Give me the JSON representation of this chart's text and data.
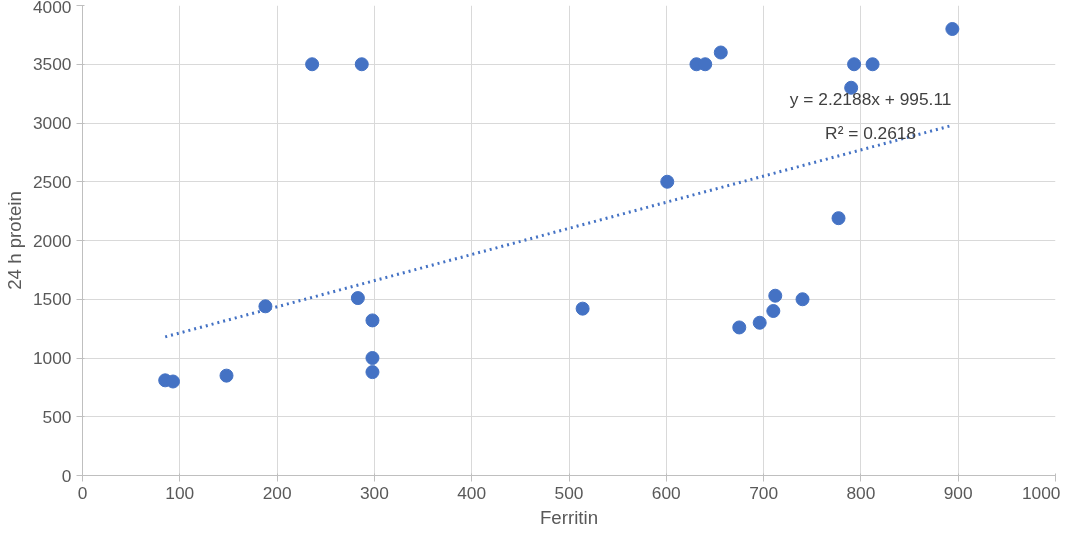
{
  "chart_data": {
    "type": "scatter",
    "xlabel": "Ferritin",
    "ylabel": "24 h protein",
    "xlim": [
      0,
      1000
    ],
    "xticks": [
      0,
      100,
      200,
      300,
      400,
      500,
      600,
      700,
      800,
      900,
      1000
    ],
    "ylim": [
      0,
      4000
    ],
    "yticks": [
      0,
      500,
      1000,
      1500,
      2000,
      2500,
      3000,
      3500,
      4000
    ],
    "grid": true,
    "series": [
      {
        "color": "#4472c4",
        "marker": "circle",
        "x": [
          85,
          93,
          148,
          188,
          236,
          287,
          283,
          298,
          298,
          298,
          514,
          601,
          631,
          640,
          656,
          675,
          696,
          710,
          712,
          740,
          777,
          790,
          793,
          812,
          894
        ],
        "values": [
          810,
          800,
          850,
          1440,
          3500,
          3500,
          1510,
          1320,
          1000,
          880,
          1420,
          2500,
          3500,
          3500,
          3600,
          1260,
          1300,
          1400,
          1530,
          1500,
          2190,
          3300,
          3500,
          3500,
          3800
        ]
      },
      {
        "type": "line",
        "line_style": "dotted",
        "color": "#4472c4",
        "x": [
          85,
          894
        ],
        "values": [
          1180,
          2980
        ]
      }
    ],
    "annotations": [
      "y = 2.2188x + 995.11",
      "R² = 0.2618"
    ]
  }
}
